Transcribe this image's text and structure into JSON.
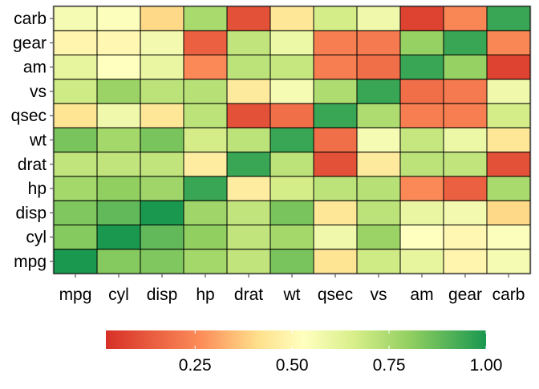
{
  "chart_data": {
    "type": "heatmap",
    "title": "",
    "xlabel": "",
    "ylabel": "",
    "x_categories": [
      "mpg",
      "cyl",
      "disp",
      "hp",
      "drat",
      "wt",
      "qsec",
      "vs",
      "am",
      "gear",
      "carb"
    ],
    "y_categories": [
      "mpg",
      "cyl",
      "disp",
      "hp",
      "drat",
      "wt",
      "qsec",
      "vs",
      "am",
      "gear",
      "carb"
    ],
    "values": [
      [
        1.0,
        0.82,
        0.83,
        0.76,
        0.7,
        0.84,
        0.42,
        0.67,
        0.6,
        0.48,
        0.55
      ],
      [
        0.82,
        1.0,
        0.88,
        0.8,
        0.7,
        0.76,
        0.57,
        0.78,
        0.52,
        0.49,
        0.53
      ],
      [
        0.83,
        0.88,
        1.0,
        0.77,
        0.7,
        0.84,
        0.43,
        0.71,
        0.59,
        0.56,
        0.39
      ],
      [
        0.76,
        0.8,
        0.77,
        0.95,
        0.45,
        0.66,
        0.71,
        0.72,
        0.24,
        0.13,
        0.75
      ],
      [
        0.7,
        0.7,
        0.7,
        0.45,
        0.95,
        0.71,
        0.09,
        0.44,
        0.71,
        0.7,
        0.09
      ],
      [
        0.84,
        0.76,
        0.84,
        0.66,
        0.71,
        0.95,
        0.17,
        0.55,
        0.69,
        0.58,
        0.43
      ],
      [
        0.42,
        0.57,
        0.43,
        0.71,
        0.09,
        0.17,
        0.95,
        0.74,
        0.21,
        0.21,
        0.66
      ],
      [
        0.67,
        0.78,
        0.71,
        0.72,
        0.44,
        0.55,
        0.74,
        0.95,
        0.17,
        0.2,
        0.57
      ],
      [
        0.6,
        0.52,
        0.59,
        0.24,
        0.71,
        0.69,
        0.21,
        0.17,
        0.95,
        0.79,
        0.05
      ],
      [
        0.48,
        0.49,
        0.56,
        0.13,
        0.7,
        0.58,
        0.21,
        0.2,
        0.79,
        0.95,
        0.23
      ],
      [
        0.55,
        0.53,
        0.39,
        0.75,
        0.09,
        0.43,
        0.66,
        0.57,
        0.05,
        0.23,
        0.95
      ]
    ],
    "color_scale": {
      "min": 0.0,
      "max": 1.0,
      "stops": [
        {
          "value": 0.0,
          "color": "#d73027"
        },
        {
          "value": 0.25,
          "color": "#fc8d59"
        },
        {
          "value": 0.4,
          "color": "#fee08b"
        },
        {
          "value": 0.52,
          "color": "#ffffbf"
        },
        {
          "value": 0.65,
          "color": "#d9ef8b"
        },
        {
          "value": 0.8,
          "color": "#91cf60"
        },
        {
          "value": 1.0,
          "color": "#1a9850"
        }
      ]
    },
    "legend": {
      "position": "bottom",
      "ticks": [
        0.25,
        0.5,
        0.75,
        1.0
      ],
      "tick_labels": [
        "0.25",
        "0.50",
        "0.75",
        "1.00"
      ]
    },
    "grid": false
  }
}
